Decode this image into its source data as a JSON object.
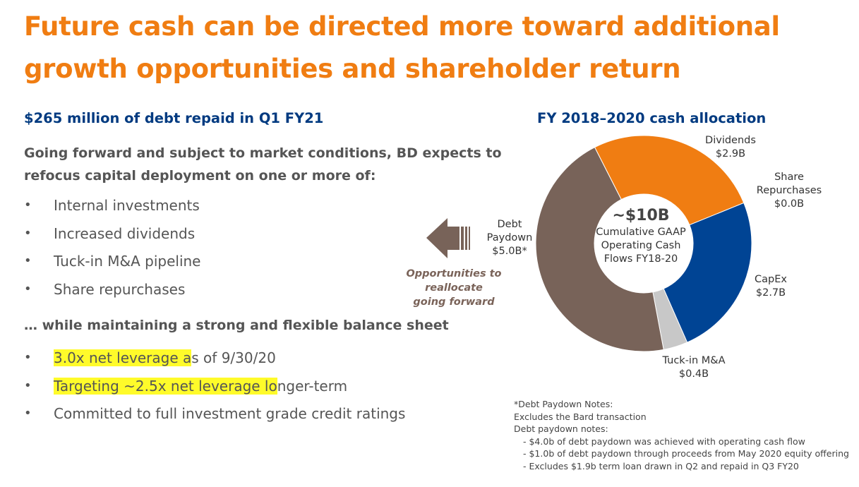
{
  "title": "Future cash can be directed more toward additional growth opportunities and shareholder return",
  "left": {
    "subhead": "$265 million of debt repaid in Q1 FY21",
    "lead": "Going forward and subject to market conditions, BD expects to refocus capital deployment on one or more of:",
    "bullets1": [
      "Internal investments",
      "Increased dividends",
      "Tuck-in M&A pipeline",
      "Share repurchases"
    ],
    "while_text": "… while maintaining a strong and flexible balance sheet",
    "bullets2": [
      {
        "highlight": "3.0x net leverage a",
        "rest": "s of 9/30/20"
      },
      {
        "highlight": "Targeting ~2.5x net leverage lo",
        "rest": "nger-term"
      },
      {
        "highlight": "",
        "rest": "Committed to full investment grade credit ratings"
      }
    ],
    "bullet_glyph": "•"
  },
  "arrow": {
    "caption_line1": "Opportunities to reallocate",
    "caption_line2": "going forward",
    "color": "#786359"
  },
  "chart_data": {
    "type": "pie",
    "title": "FY 2018–2020 cash allocation",
    "unit": "$B",
    "center": {
      "big": "~$10B",
      "line1": "Cumulative GAAP",
      "line2": "Operating Cash",
      "line3": "Flows FY18-20"
    },
    "slices": [
      {
        "key": "dividends",
        "name": "Dividends",
        "value": 2.9,
        "value_label": "$2.9B",
        "color": "#f07d12"
      },
      {
        "key": "share",
        "name_line1": "Share",
        "name_line2": "Repurchases",
        "value": 0.0,
        "value_label": "$0.0B",
        "color": "#f07d12"
      },
      {
        "key": "capex",
        "name": "CapEx",
        "value": 2.7,
        "value_label": "$2.7B",
        "color": "#004494"
      },
      {
        "key": "tuckin",
        "name": "Tuck-in M&A",
        "value": 0.4,
        "value_label": "$0.4B",
        "color": "#c8c8c8"
      },
      {
        "key": "debt",
        "name_line1": "Debt",
        "name_line2": "Paydown",
        "value": 5.0,
        "value_label": "$5.0B*",
        "color": "#786359"
      }
    ]
  },
  "notes": {
    "l1": "*Debt Paydown Notes:",
    "l2": "Excludes the Bard transaction",
    "l3": "Debt paydown notes:",
    "l4": "- $4.0b of debt paydown was achieved with operating cash flow",
    "l5": "- $1.0b of debt paydown through proceeds from May 2020 equity offering",
    "l6": "- Excludes $1.9b term loan drawn in Q2 and repaid in Q3 FY20"
  }
}
